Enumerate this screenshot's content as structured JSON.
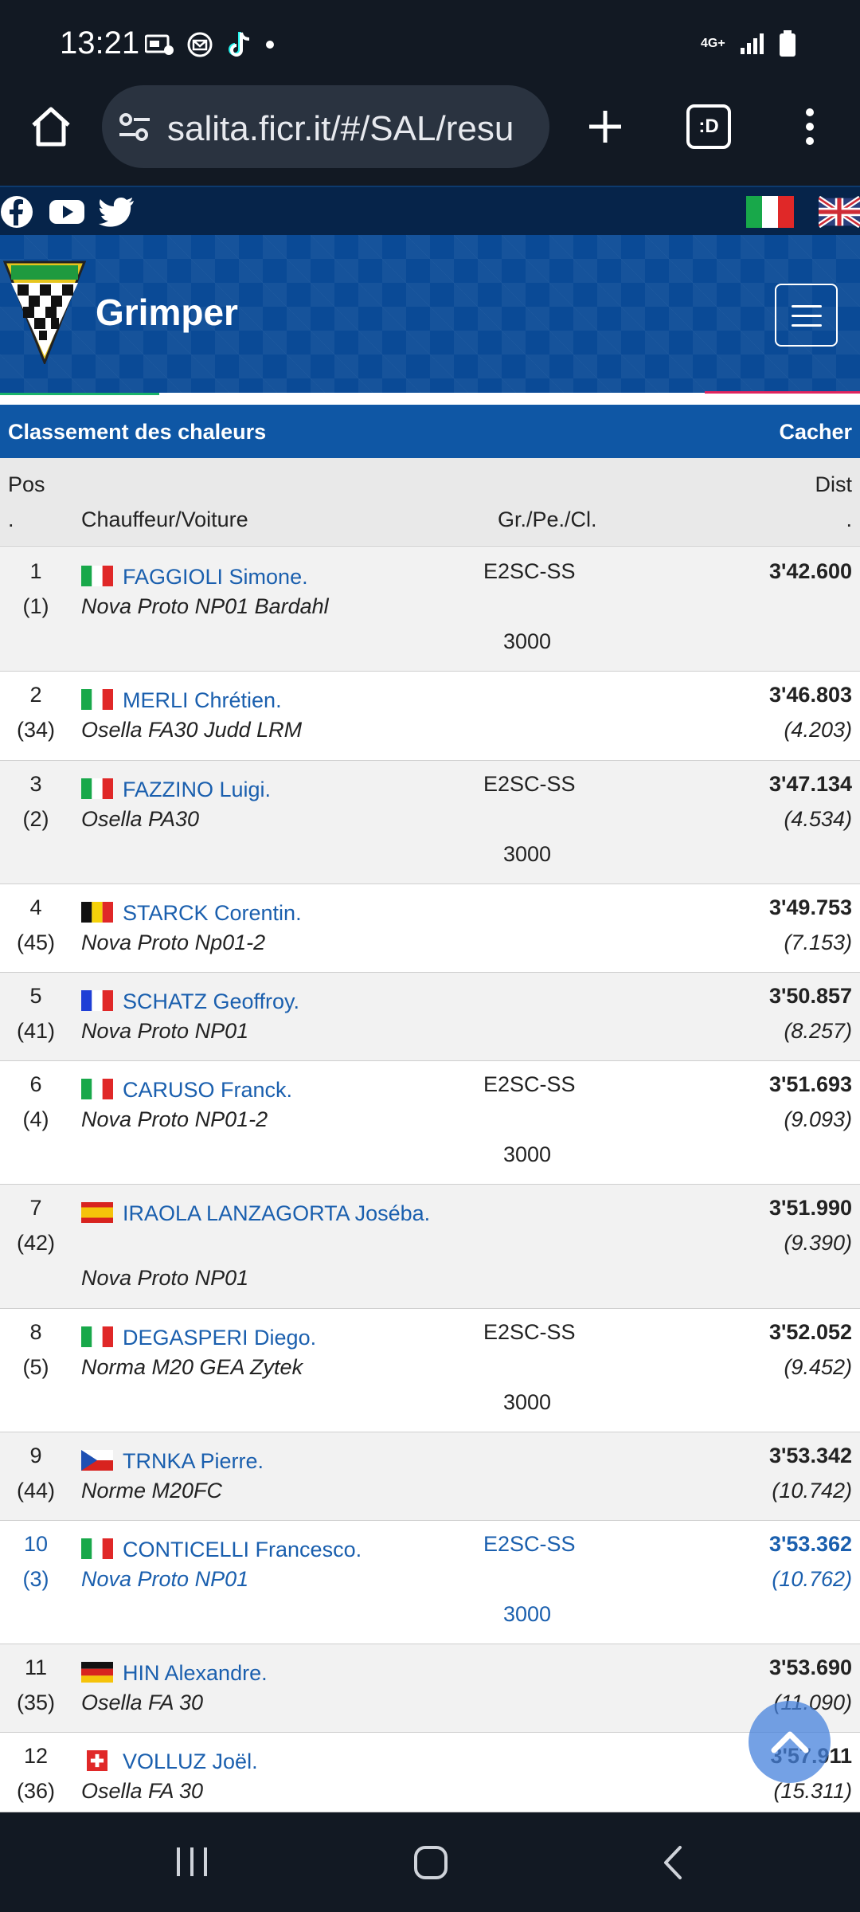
{
  "status_bar": {
    "time": "13:21",
    "network": "4G+"
  },
  "browser": {
    "url": "salita.ficr.it/#/SAL/resu",
    "tab_label": ":D"
  },
  "site": {
    "title": "Grimper"
  },
  "section": {
    "title": "Classement des chaleurs",
    "toggle_label": "Cacher"
  },
  "columns": {
    "pos_line1": "Pos",
    "pos_line2": ".",
    "driver_car": "Chauffeur/Voiture",
    "group": "Gr./Pe./Cl.",
    "dist_line1": "Dist",
    "dist_line2": "."
  },
  "rows": [
    {
      "pos": "1",
      "num": "(1)",
      "flag": "italy",
      "driver": "FAGGIOLI Simone.",
      "car": "Nova Proto NP01 Bardahl",
      "group": "E2SC-SS",
      "cls": "3000",
      "time": "3'42.600",
      "gap": ""
    },
    {
      "pos": "2",
      "num": "(34)",
      "flag": "italy",
      "driver": "MERLI Chrétien.",
      "car": "Osella FA30 Judd LRM",
      "group": "",
      "cls": "",
      "time": "3'46.803",
      "gap": "(4.203)"
    },
    {
      "pos": "3",
      "num": "(2)",
      "flag": "italy",
      "driver": "FAZZINO Luigi.",
      "car": "Osella PA30",
      "group": "E2SC-SS",
      "cls": "3000",
      "time": "3'47.134",
      "gap": "(4.534)"
    },
    {
      "pos": "4",
      "num": "(45)",
      "flag": "belgium",
      "driver": "STARCK Corentin.",
      "car": "Nova Proto Np01-2",
      "group": "",
      "cls": "",
      "time": "3'49.753",
      "gap": "(7.153)"
    },
    {
      "pos": "5",
      "num": "(41)",
      "flag": "france",
      "driver": "SCHATZ Geoffroy.",
      "car": "Nova Proto NP01",
      "group": "",
      "cls": "",
      "time": "3'50.857",
      "gap": "(8.257)"
    },
    {
      "pos": "6",
      "num": "(4)",
      "flag": "italy",
      "driver": "CARUSO Franck.",
      "car": "Nova Proto NP01-2",
      "group": "E2SC-SS",
      "cls": "3000",
      "time": "3'51.693",
      "gap": "(9.093)"
    },
    {
      "pos": "7",
      "num": "(42)",
      "flag": "spain",
      "driver": "IRAOLA LANZAGORTA Joséba.",
      "car": "Nova Proto NP01",
      "group": "",
      "cls": "",
      "time": "3'51.990",
      "gap": "(9.390)"
    },
    {
      "pos": "8",
      "num": "(5)",
      "flag": "italy",
      "driver": "DEGASPERI Diego.",
      "car": "Norma M20 GEA Zytek",
      "group": "E2SC-SS",
      "cls": "3000",
      "time": "3'52.052",
      "gap": "(9.452)"
    },
    {
      "pos": "9",
      "num": "(44)",
      "flag": "czech",
      "driver": "TRNKA Pierre.",
      "car": "Norme M20FC",
      "group": "",
      "cls": "",
      "time": "3'53.342",
      "gap": "(10.742)"
    },
    {
      "pos": "10",
      "num": "(3)",
      "flag": "italy",
      "driver": "CONTICELLI Francesco.",
      "car": "Nova Proto NP01",
      "group": "E2SC-SS",
      "cls": "3000",
      "time": "3'53.362",
      "gap": "(10.762)"
    },
    {
      "pos": "11",
      "num": "(35)",
      "flag": "germany",
      "driver": "HIN Alexandre.",
      "car": "Osella FA 30",
      "group": "",
      "cls": "",
      "time": "3'53.690",
      "gap": "(11.090)"
    },
    {
      "pos": "12",
      "num": "(36)",
      "flag": "switzerland",
      "driver": "VOLLUZ Joël.",
      "car": "Osella FA 30",
      "group": "",
      "cls": "",
      "time": "3'57.911",
      "gap": "(15.311)"
    }
  ],
  "colors": {
    "link": "#1a5fae",
    "section": "#0f57a5",
    "header_bg": "#0a4a96",
    "dark_chrome": "#121923"
  }
}
